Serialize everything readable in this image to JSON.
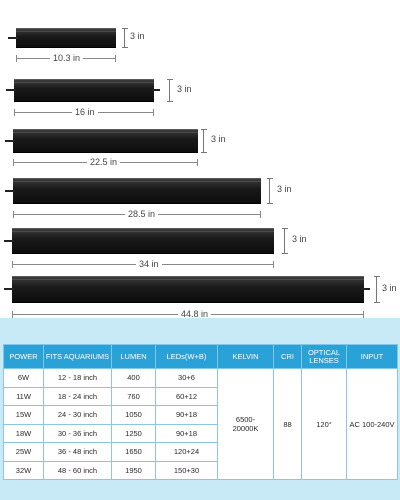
{
  "lights": [
    {
      "length": "10.3 in",
      "height": "3 in"
    },
    {
      "length": "16 in",
      "height": "3 in"
    },
    {
      "length": "22.5 in",
      "height": "3 in"
    },
    {
      "length": "28.5 in",
      "height": "3 in"
    },
    {
      "length": "34 in",
      "height": "3 in"
    },
    {
      "length": "44.8 in",
      "height": "3 in"
    }
  ],
  "table": {
    "headers": [
      "POWER",
      "FITS AQUARIUMS",
      "LUMEN",
      "LEDs(W+B)",
      "KELVIN",
      "CRI",
      "OPTICAL LENSES",
      "INPUT"
    ],
    "rows": [
      [
        "6W",
        "12 - 18 inch",
        "400",
        "30+6"
      ],
      [
        "11W",
        "18 - 24 inch",
        "760",
        "60+12"
      ],
      [
        "15W",
        "24 - 30 inch",
        "1050",
        "90+18"
      ],
      [
        "18W",
        "30 - 36 inch",
        "1250",
        "90+18"
      ],
      [
        "25W",
        "36 - 48 inch",
        "1650",
        "120+24"
      ],
      [
        "32W",
        "48 - 60 inch",
        "1950",
        "150+30"
      ]
    ],
    "kelvin": "6500-20000K",
    "cri": "88",
    "lenses": "120°",
    "input": "AC 100-240V"
  }
}
